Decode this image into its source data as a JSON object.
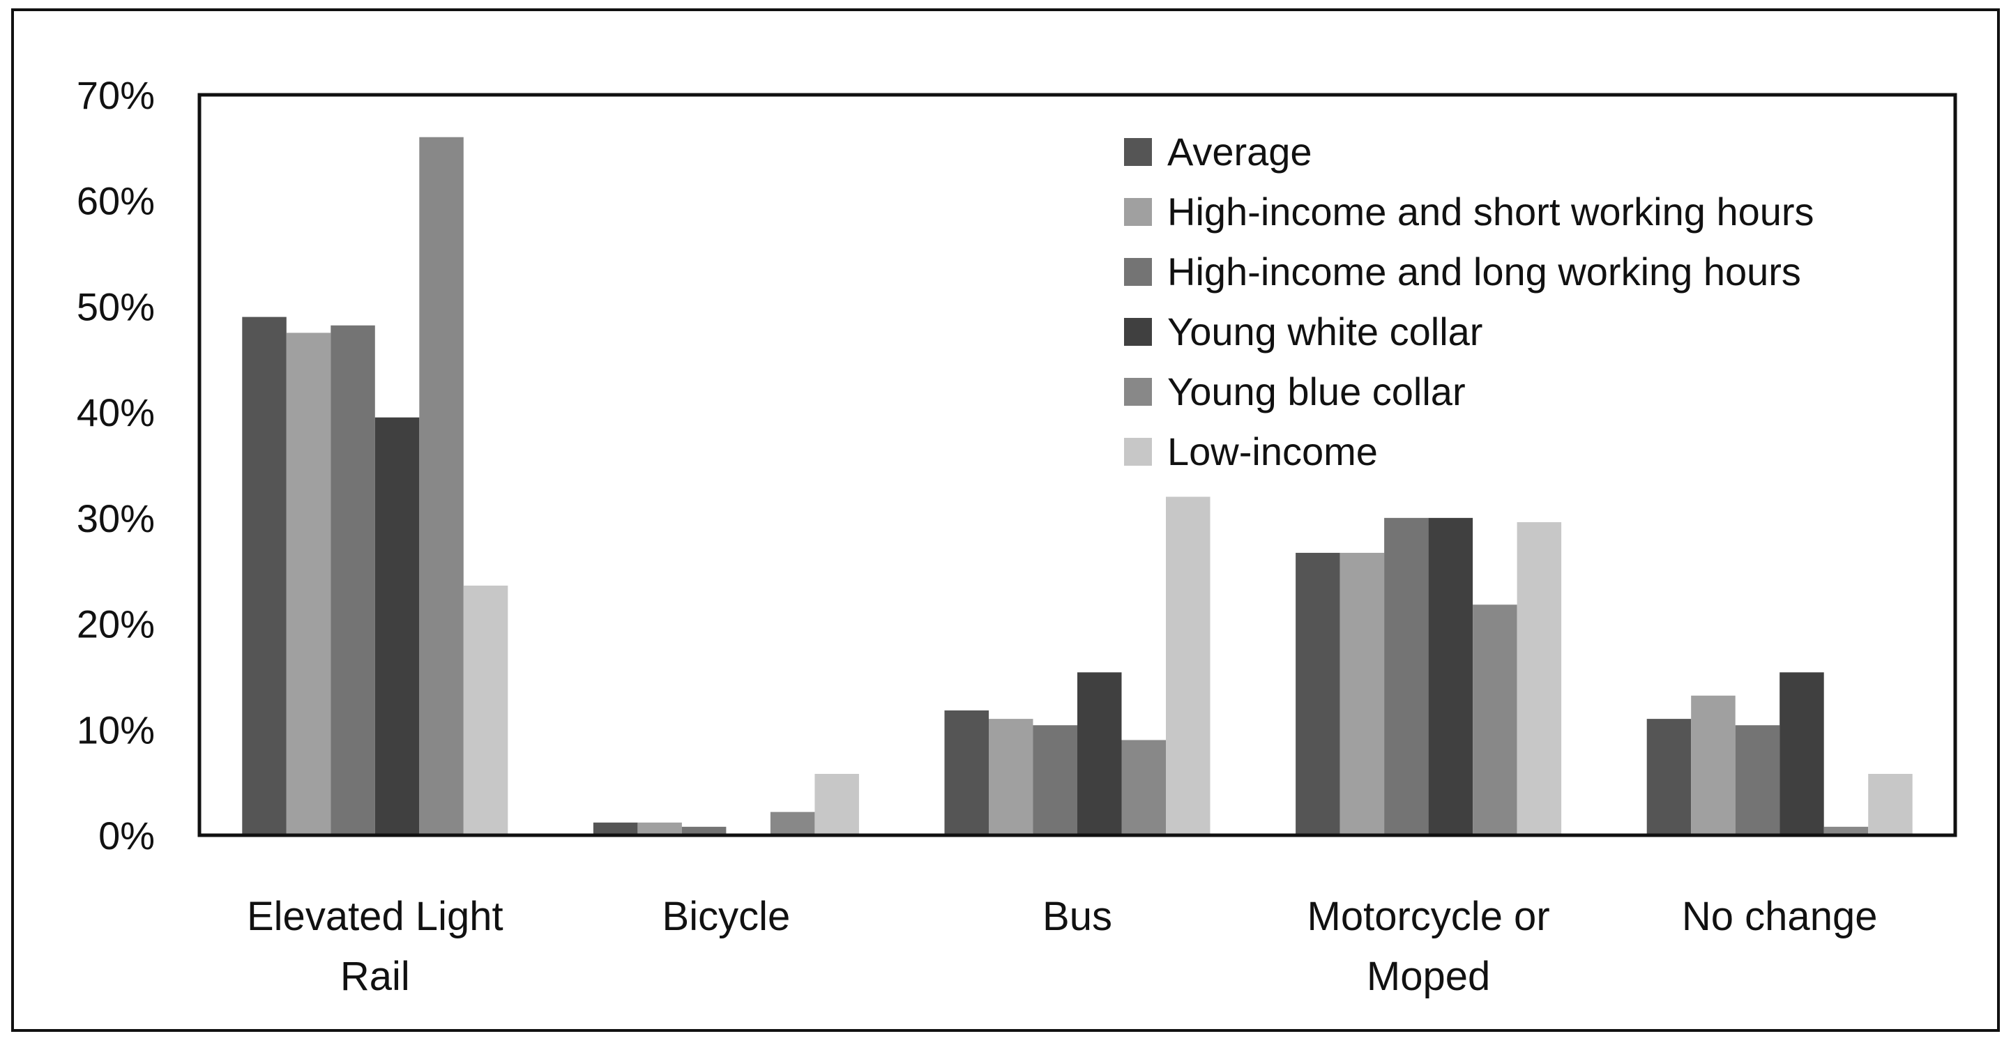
{
  "chart_data": {
    "type": "bar",
    "title": "",
    "xlabel": "",
    "ylabel": "",
    "ylim": [
      0,
      0.7
    ],
    "yticks": [
      0,
      0.1,
      0.2,
      0.3,
      0.4,
      0.5,
      0.6,
      0.7
    ],
    "ytick_labels": [
      "0%",
      "10%",
      "20%",
      "30%",
      "40%",
      "50%",
      "60%",
      "70%"
    ],
    "grid": false,
    "legend_position": "top-right",
    "categories": [
      "Elevated Light Rail",
      "Bicycle",
      "Bus",
      "Motorcycle or Moped",
      "No change"
    ],
    "category_label_lines": [
      [
        "Elevated Light",
        "Rail"
      ],
      [
        "Bicycle"
      ],
      [
        "Bus"
      ],
      [
        "Motorcycle or",
        "Moped"
      ],
      [
        "No change"
      ]
    ],
    "series": [
      {
        "name": "Average",
        "color": "#555555",
        "values": [
          0.49,
          0.012,
          0.118,
          0.267,
          0.11
        ]
      },
      {
        "name": "High-income and short working hours",
        "color": "#a0a0a0",
        "values": [
          0.475,
          0.012,
          0.11,
          0.267,
          0.132
        ]
      },
      {
        "name": "High-income and long working hours",
        "color": "#747474",
        "values": [
          0.482,
          0.008,
          0.104,
          0.3,
          0.104
        ]
      },
      {
        "name": "Young white collar",
        "color": "#404040",
        "values": [
          0.395,
          0.0,
          0.154,
          0.3,
          0.154
        ]
      },
      {
        "name": "Young blue collar",
        "color": "#888888",
        "values": [
          0.66,
          0.022,
          0.09,
          0.218,
          0.008
        ]
      },
      {
        "name": "Low-income",
        "color": "#c7c7c7",
        "values": [
          0.236,
          0.058,
          0.32,
          0.296,
          0.058
        ]
      }
    ]
  }
}
